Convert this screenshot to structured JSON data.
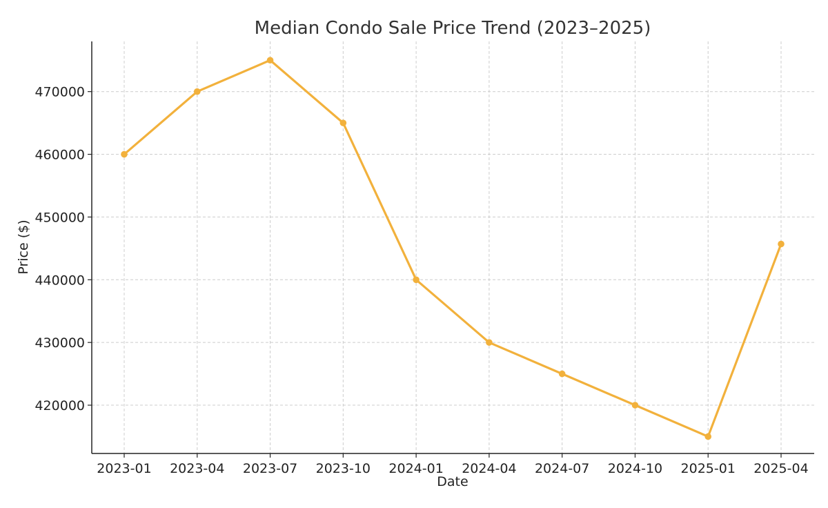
{
  "chart_data": {
    "type": "line",
    "title": "Median Condo Sale Price Trend (2023–2025)",
    "xlabel": "Date",
    "ylabel": "Price ($)",
    "x": [
      "2023-01",
      "2023-04",
      "2023-07",
      "2023-10",
      "2024-01",
      "2024-04",
      "2024-07",
      "2024-10",
      "2025-01",
      "2025-04"
    ],
    "series": [
      {
        "values": [
          460000,
          470000,
          475000,
          465000,
          440000,
          430000,
          425000,
          420000,
          415000,
          445700
        ],
        "color": "#f2b13c",
        "marker": "circle"
      }
    ],
    "yticks": [
      420000,
      430000,
      440000,
      450000,
      460000,
      470000
    ],
    "ytick_labels": [
      "420000",
      "430000",
      "440000",
      "450000",
      "460000",
      "470000"
    ],
    "xtick_labels": [
      "2023-01",
      "2023-04",
      "2023-07",
      "2023-10",
      "2024-01",
      "2024-04",
      "2024-07",
      "2024-10",
      "2025-01",
      "2025-04"
    ],
    "ylim": [
      412300,
      478000
    ],
    "grid": true,
    "legend": false
  }
}
